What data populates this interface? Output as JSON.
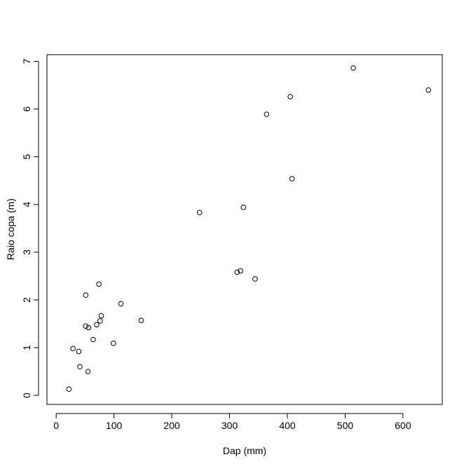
{
  "chart_data": {
    "type": "scatter",
    "xlabel": "Dap (mm)",
    "ylabel": "Raio copa (m)",
    "x": [
      22,
      29,
      39,
      41,
      55,
      51,
      51,
      56,
      64,
      70,
      74,
      76,
      78,
      99,
      112,
      147,
      248,
      313,
      319,
      324,
      344,
      364,
      405,
      408,
      514,
      644
    ],
    "values": [
      0.13,
      0.98,
      0.92,
      0.6,
      0.5,
      2.1,
      1.45,
      1.42,
      1.17,
      1.48,
      2.33,
      1.56,
      1.67,
      1.09,
      1.92,
      1.57,
      3.83,
      2.58,
      2.61,
      3.94,
      2.44,
      5.89,
      6.26,
      4.54,
      6.86,
      6.4
    ],
    "color": "#000000",
    "xlim": [
      -16,
      668
    ],
    "ylim": [
      -0.19,
      7.14
    ],
    "xticks": [
      0,
      100,
      200,
      300,
      400,
      500,
      600
    ],
    "yticks": [
      0,
      1,
      2,
      3,
      4,
      5,
      6,
      7
    ]
  }
}
